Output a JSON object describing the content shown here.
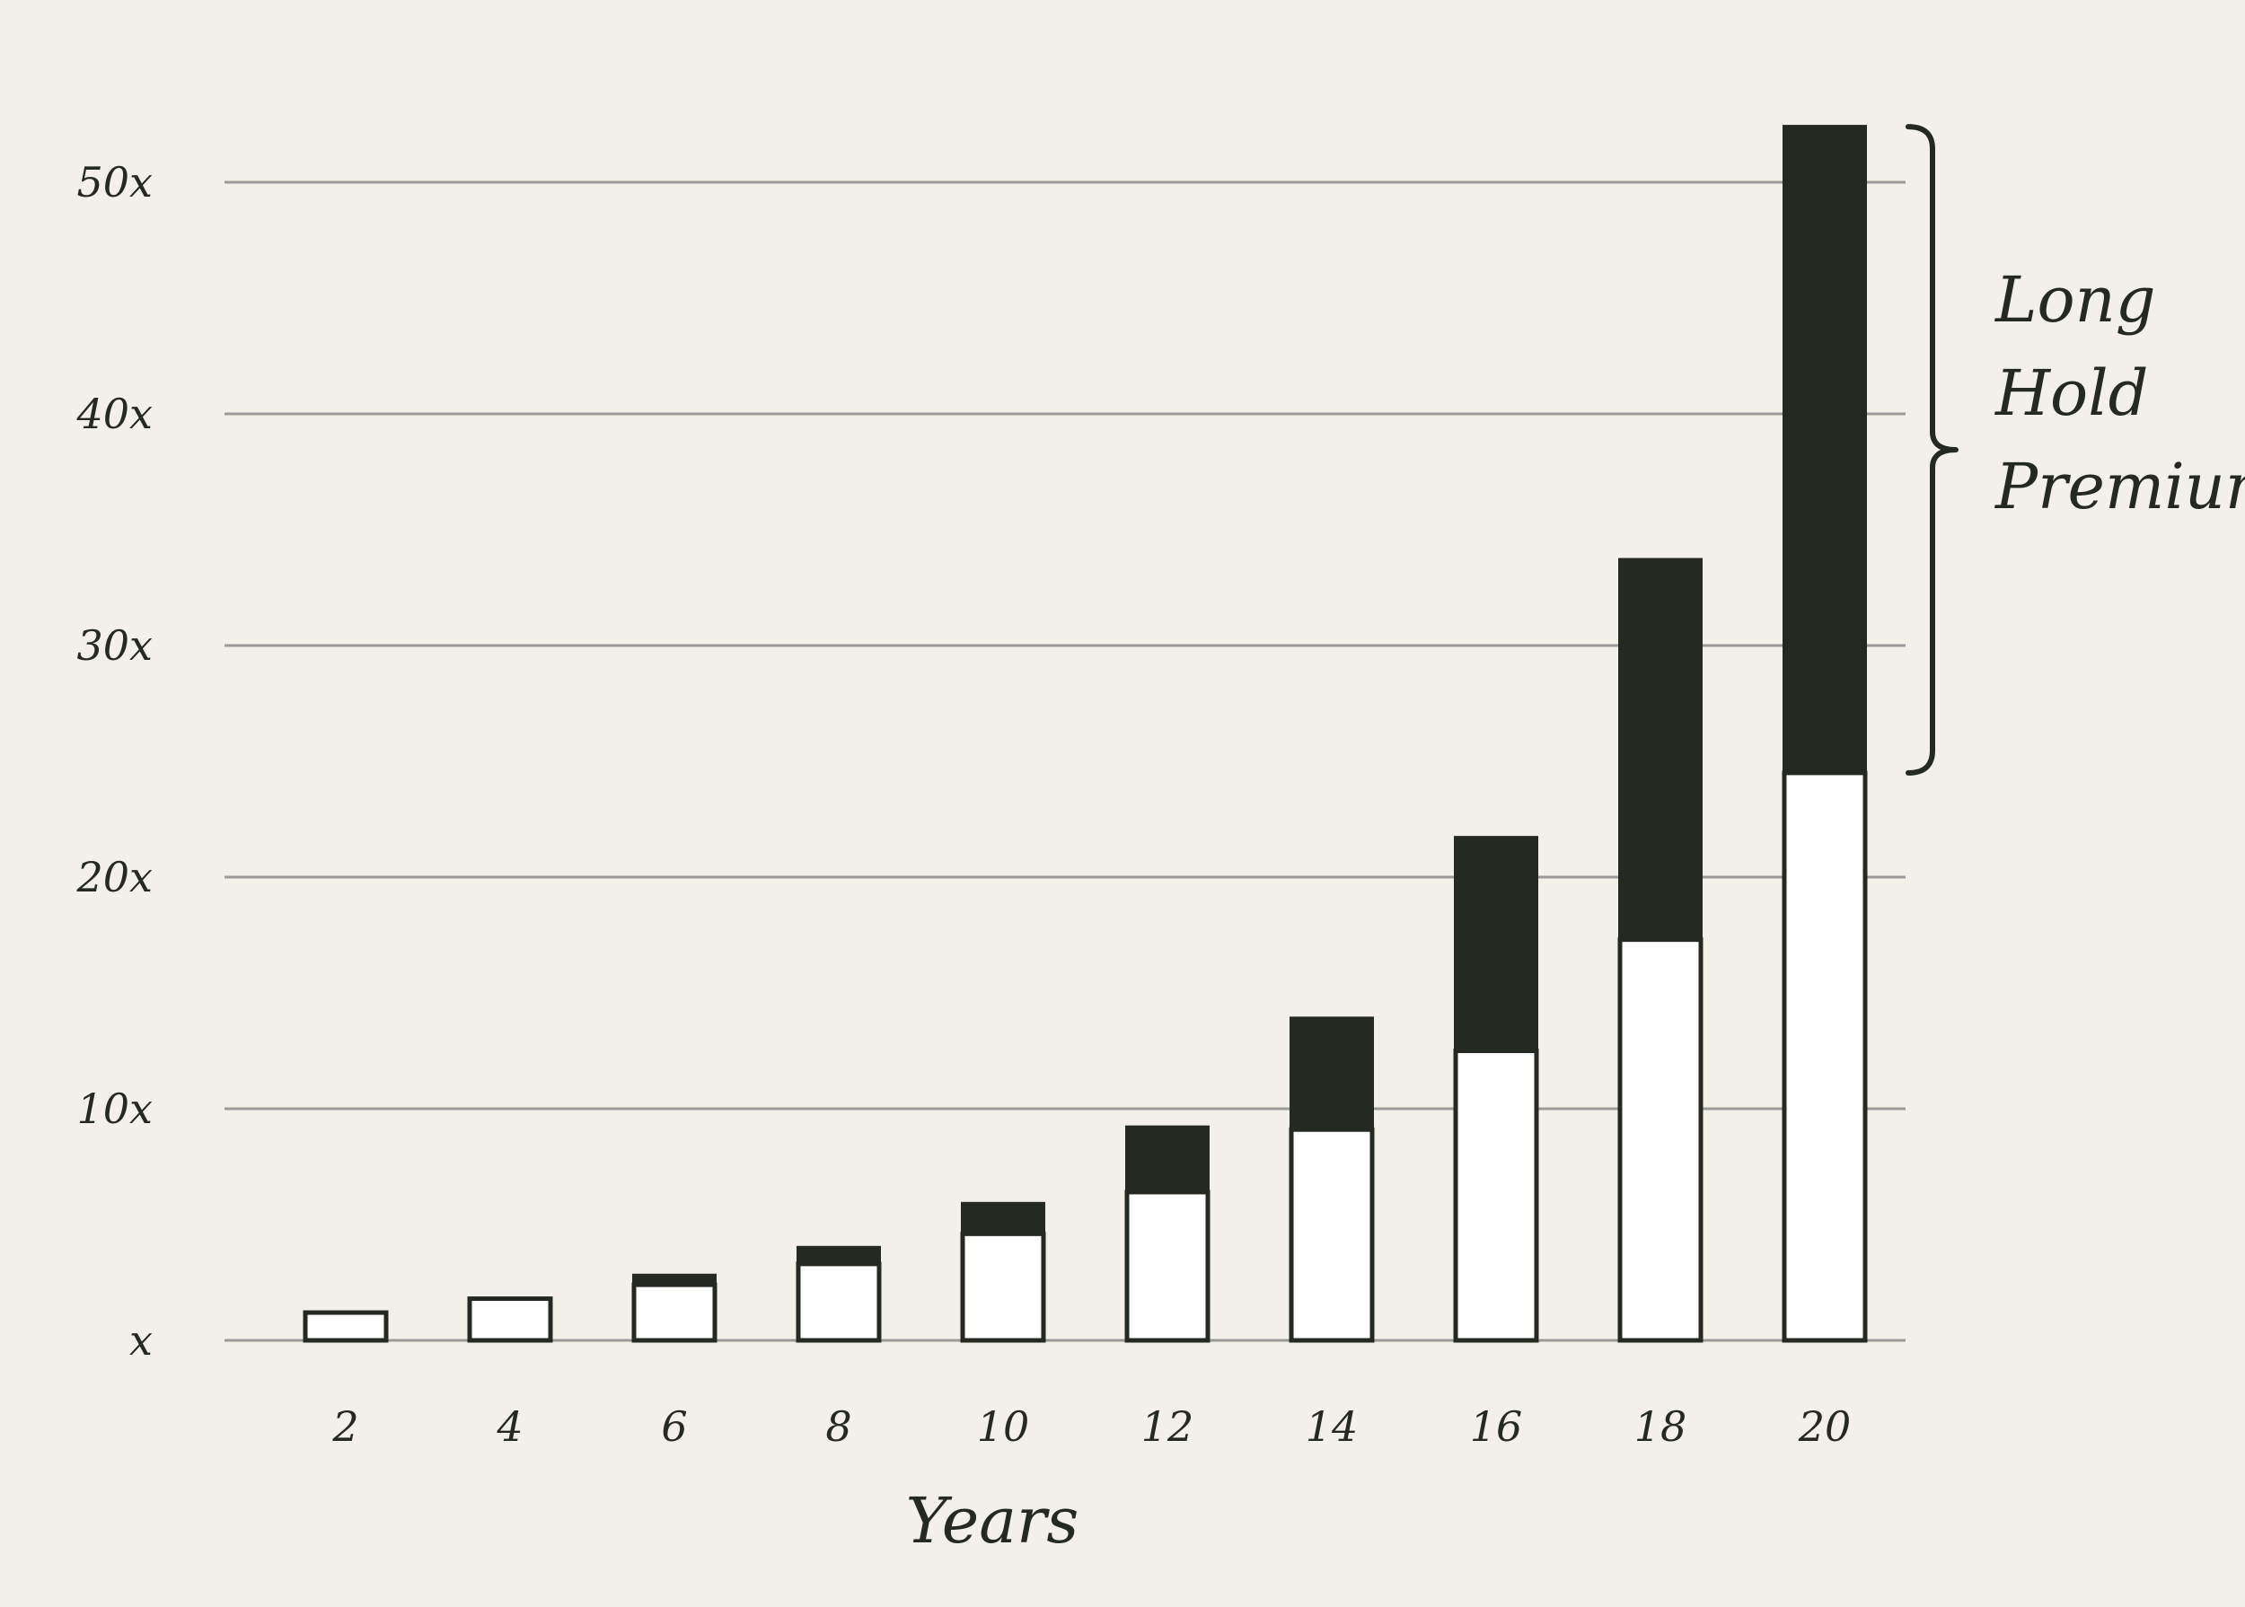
{
  "chart_data": {
    "type": "bar",
    "stacked": true,
    "categories": [
      "2",
      "4",
      "6",
      "8",
      "10",
      "12",
      "14",
      "16",
      "18",
      "20"
    ],
    "series": [
      {
        "values": [
          1.2,
          1.8,
          2.4,
          3.3,
          4.6,
          6.4,
          9.1,
          12.5,
          17.3,
          24.5
        ]
      },
      {
        "values": [
          0.0,
          0.0,
          0.4,
          0.7,
          1.3,
          2.8,
          4.8,
          9.2,
          16.4,
          27.9
        ]
      }
    ],
    "totals": [
      1.2,
      1.8,
      2.8,
      4.0,
      5.9,
      9.2,
      13.9,
      21.7,
      33.7,
      52.4
    ],
    "y_ticks": [
      {
        "value": 0,
        "label": "x"
      },
      {
        "value": 10,
        "label": "10x"
      },
      {
        "value": 20,
        "label": "20x"
      },
      {
        "value": 30,
        "label": "30x"
      },
      {
        "value": 40,
        "label": "40x"
      },
      {
        "value": 50,
        "label": "50x"
      }
    ],
    "ylim": [
      0,
      52.4
    ],
    "xlabel": "Years",
    "ylabel": "",
    "grid": true,
    "annotation": {
      "lines": [
        "Long",
        "Hold",
        "Premium"
      ],
      "bracket_from_value": 24.5,
      "bracket_to_value": 52.4
    },
    "colors": {
      "background": "#f3f0ea",
      "base_fill": "#ffffff",
      "premium_fill": "#242a22",
      "outline": "#242a22",
      "grid": "#9a9a9a",
      "text": "#242a22"
    }
  }
}
